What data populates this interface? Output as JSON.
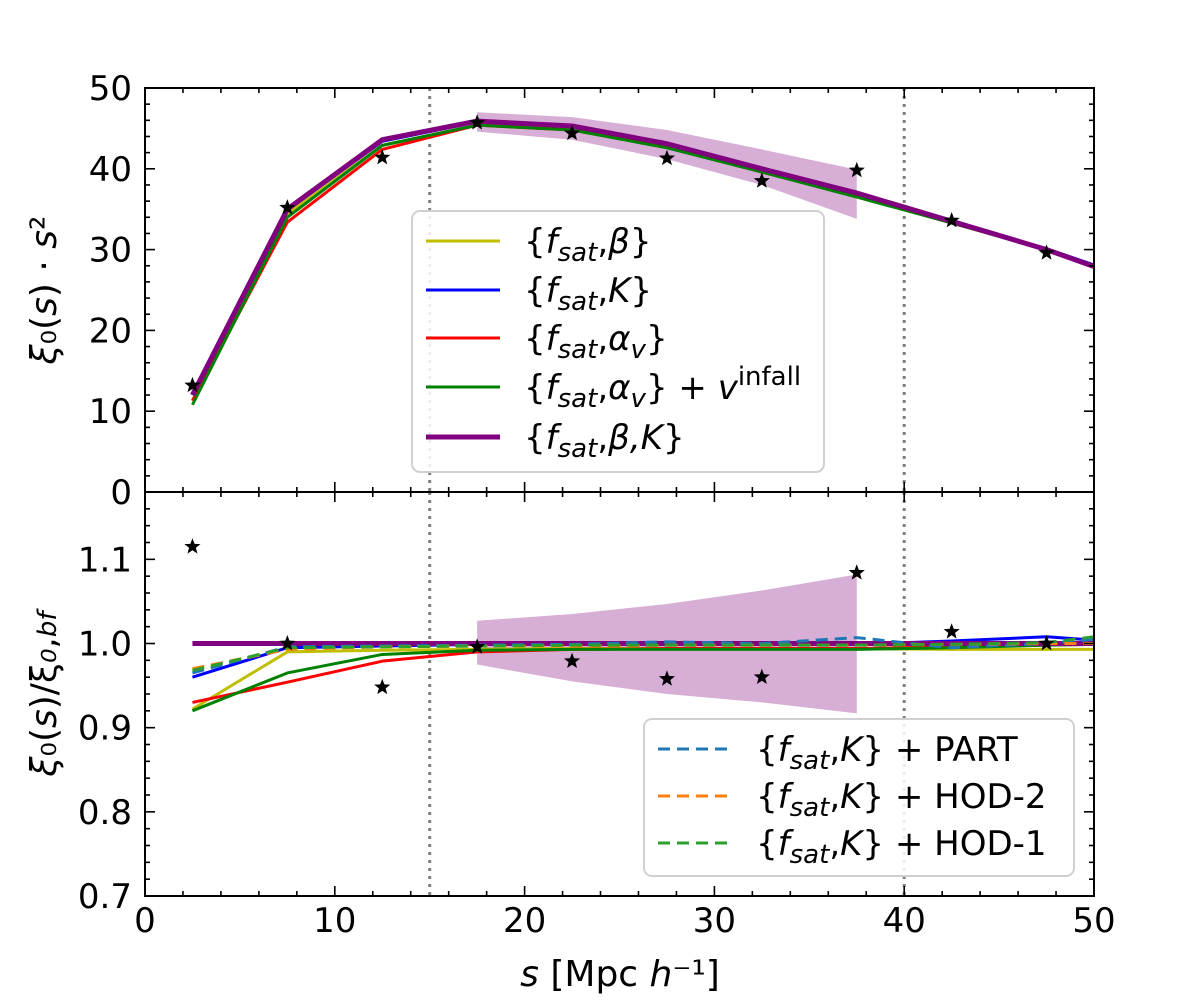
{
  "chart_data": {
    "type": "line",
    "x": [
      2.5,
      7.5,
      12.5,
      17.5,
      22.5,
      27.5,
      32.5,
      37.5,
      42.5,
      47.5,
      50
    ],
    "x_axis": {
      "label": "s [Mpc h⁻¹]",
      "range": [
        0,
        50
      ],
      "ticks": [
        "0",
        "10",
        "20",
        "30",
        "40",
        "50"
      ]
    },
    "vlines": [
      15,
      40
    ],
    "top_panel": {
      "ylabel": "ξ₀(s) · s²",
      "ylim": [
        0,
        50
      ],
      "yticks": [
        "0",
        "10",
        "20",
        "30",
        "40",
        "50"
      ],
      "band": {
        "x": [
          17.5,
          22.5,
          27.5,
          32.5,
          37.5
        ],
        "lower": [
          44.6,
          43.6,
          41.2,
          38.0,
          33.8
        ],
        "upper": [
          47.0,
          46.4,
          44.8,
          42.4,
          39.9
        ],
        "color": "#d6aed6"
      },
      "stars": {
        "x": [
          2.5,
          7.5,
          12.5,
          17.5,
          22.5,
          27.5,
          32.5,
          37.5,
          42.5,
          47.5
        ],
        "y": [
          13.2,
          35.2,
          41.4,
          45.7,
          44.4,
          41.3,
          38.5,
          39.8,
          33.6,
          29.6
        ]
      },
      "series": [
        {
          "name": "{f_sat,β}",
          "color": "#bfbf00",
          "width": 3,
          "dash": "",
          "values": [
            11.3,
            34.4,
            42.9,
            45.4,
            44.9,
            42.9,
            39.7,
            36.6,
            33.3,
            30.0,
            27.9
          ]
        },
        {
          "name": "{f_sat,K}",
          "color": "#0000ff",
          "width": 3,
          "dash": "",
          "values": [
            12.0,
            34.9,
            43.4,
            45.8,
            45.2,
            43.0,
            40.0,
            37.0,
            33.4,
            30.1,
            28.1
          ]
        },
        {
          "name": "{f_sat,α_v}",
          "color": "#ff0000",
          "width": 3,
          "dash": "",
          "values": [
            11.3,
            33.4,
            42.4,
            45.4,
            44.8,
            42.8,
            39.6,
            36.6,
            33.3,
            30.0,
            27.9
          ]
        },
        {
          "name": "{f_sat,α_v} + v^infall",
          "color": "#008000",
          "width": 3,
          "dash": "",
          "values": [
            10.8,
            34.0,
            42.9,
            45.4,
            44.8,
            42.6,
            39.6,
            36.5,
            33.3,
            30.0,
            27.9
          ]
        },
        {
          "name": "{f_sat,β,K}",
          "color": "#800080",
          "width": 5,
          "dash": "",
          "values": [
            12.0,
            35.0,
            43.6,
            45.9,
            45.3,
            43.1,
            40.0,
            37.0,
            33.5,
            30.0,
            27.9
          ]
        }
      ],
      "legend": {
        "position": "center",
        "entries": [
          {
            "pre": "{",
            "f": "f",
            "sub": "sat",
            "sep": ",",
            "param": "β",
            "psub": "",
            "post": "}",
            "sup": ""
          },
          {
            "pre": "{",
            "f": "f",
            "sub": "sat",
            "sep": ",",
            "param": "K",
            "psub": "",
            "post": "}",
            "sup": ""
          },
          {
            "pre": "{",
            "f": "f",
            "sub": "sat",
            "sep": ",",
            "param": "α",
            "psub": "v",
            "post": "}",
            "sup": ""
          },
          {
            "pre": "{",
            "f": "f",
            "sub": "sat",
            "sep": ",",
            "param": "α",
            "psub": "v",
            "post": "} + ",
            "var": "v",
            "sup": "infall"
          },
          {
            "pre": "{",
            "f": "f",
            "sub": "sat",
            "sep": ",",
            "param": "β,K",
            "psub": "",
            "post": "}",
            "sup": ""
          }
        ]
      }
    },
    "bottom_panel": {
      "ylabel": "ξ₀(s)/ξ₀,bf",
      "ylim": [
        0.7,
        1.18
      ],
      "yticks": [
        "0.7",
        "0.8",
        "0.9",
        "1.0",
        "1.1"
      ],
      "band": {
        "x": [
          17.5,
          22.5,
          27.5,
          32.5,
          37.5
        ],
        "lower": [
          0.975,
          0.955,
          0.94,
          0.93,
          0.917
        ],
        "upper": [
          1.027,
          1.035,
          1.047,
          1.063,
          1.082
        ],
        "color": "#d6aed6"
      },
      "stars": {
        "x": [
          2.5,
          7.5,
          12.5,
          17.5,
          22.5,
          27.5,
          32.5,
          37.5,
          42.5,
          47.5
        ],
        "y": [
          1.115,
          1.0,
          0.948,
          0.996,
          0.979,
          0.958,
          0.96,
          1.084,
          1.014,
          1.0
        ]
      },
      "series": [
        {
          "name": "{f_sat,β}",
          "color": "#bfbf00",
          "width": 3,
          "dash": "",
          "values": [
            0.922,
            0.99,
            0.992,
            0.993,
            0.994,
            0.994,
            0.994,
            0.994,
            0.993,
            0.993,
            0.993
          ]
        },
        {
          "name": "{f_sat,K}",
          "color": "#0000ff",
          "width": 3,
          "dash": "",
          "values": [
            0.96,
            0.995,
            0.997,
            0.999,
            1.0,
            1.0,
            1.0,
            0.999,
            1.003,
            1.008,
            1.004
          ]
        },
        {
          "name": "{f_sat,α_v}",
          "color": "#ff0000",
          "width": 3,
          "dash": "",
          "values": [
            0.93,
            0.954,
            0.979,
            0.99,
            0.993,
            0.994,
            0.994,
            0.994,
            0.996,
            0.998,
            0.999
          ]
        },
        {
          "name": "{f_sat,α_v} + v^infall",
          "color": "#008000",
          "width": 3,
          "dash": "",
          "values": [
            0.92,
            0.965,
            0.987,
            0.992,
            0.993,
            0.993,
            0.993,
            0.993,
            0.995,
            0.998,
            0.999
          ]
        },
        {
          "name": "{f_sat,β,K}",
          "color": "#800080",
          "width": 5,
          "dash": "",
          "values": [
            1.0,
            1.0,
            1.0,
            1.0,
            1.0,
            1.0,
            1.0,
            1.0,
            1.0,
            1.0,
            1.0
          ]
        },
        {
          "name": "{f_sat,K} + PART",
          "color": "#1f77b4",
          "width": 3,
          "dash": "12,7",
          "values": [
            0.965,
            0.996,
            0.997,
            0.998,
            0.999,
            1.002,
            1.0,
            1.007,
            0.995,
            1.0,
            1.005
          ]
        },
        {
          "name": "{f_sat,K} + HOD-2",
          "color": "#ff7f0e",
          "width": 3,
          "dash": "12,7",
          "values": [
            0.97,
            0.993,
            0.996,
            0.997,
            0.997,
            0.998,
            0.998,
            0.998,
            0.999,
            1.0,
            1.0
          ]
        },
        {
          "name": "{f_sat,K} + HOD-1",
          "color": "#2ca02c",
          "width": 3,
          "dash": "12,7",
          "values": [
            0.968,
            0.995,
            0.996,
            0.997,
            0.998,
            0.998,
            0.998,
            0.998,
            0.999,
            1.001,
            1.008
          ]
        }
      ],
      "legend": {
        "position": "lower-right",
        "entries": [
          {
            "pre": "{",
            "f": "f",
            "sub": "sat",
            "sep": ",",
            "param": "K",
            "psub": "",
            "post": "} + PART",
            "sup": ""
          },
          {
            "pre": "{",
            "f": "f",
            "sub": "sat",
            "sep": ",",
            "param": "K",
            "psub": "",
            "post": "} + HOD-2",
            "sup": ""
          },
          {
            "pre": "{",
            "f": "f",
            "sub": "sat",
            "sep": ",",
            "param": "K",
            "psub": "",
            "post": "} + HOD-1",
            "sup": ""
          }
        ]
      }
    }
  }
}
